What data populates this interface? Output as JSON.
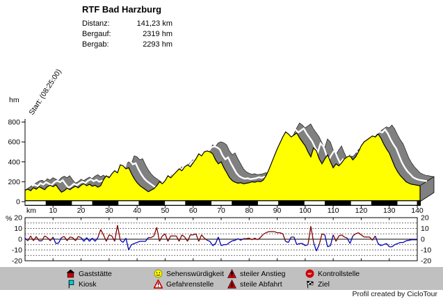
{
  "header": {
    "title": "RTF Bad Harzburg",
    "stats": [
      {
        "label": "Distanz:",
        "value": "141,23 km"
      },
      {
        "label": "Bergauf:",
        "value": "2319 hm"
      },
      {
        "label": "Bergab:",
        "value": "2293 hm"
      }
    ]
  },
  "colors": {
    "profile_fill": "#ffff00",
    "extrusion": "#808080",
    "stripe": "#ffffff",
    "climb": "#800000",
    "descent": "#0000bb",
    "legend_bg": "#c0c0c0",
    "axis": "#000000"
  },
  "chart_data": [
    {
      "type": "area",
      "title": "RTF Bad Harzburg elevation profile",
      "xlabel": "km",
      "ylabel": "hm",
      "start_annotation": "Start: (08:25:00)",
      "xlim": [
        0,
        140
      ],
      "ylim": [
        0,
        800
      ],
      "x_ticks": [
        10,
        20,
        30,
        40,
        50,
        60,
        70,
        80,
        90,
        100,
        110,
        120,
        130,
        140
      ],
      "y_ticks": [
        0,
        200,
        400,
        600,
        800
      ],
      "x_step_km": 1,
      "elevation_hm": [
        115,
        125,
        110,
        140,
        125,
        150,
        135,
        120,
        150,
        165,
        150,
        170,
        130,
        95,
        110,
        135,
        120,
        140,
        155,
        140,
        165,
        180,
        160,
        175,
        155,
        165,
        145,
        160,
        220,
        260,
        240,
        280,
        310,
        290,
        370,
        360,
        330,
        340,
        280,
        230,
        190,
        160,
        140,
        120,
        100,
        115,
        130,
        160,
        200,
        180,
        210,
        260,
        240,
        270,
        300,
        330,
        310,
        350,
        370,
        350,
        390,
        430,
        480,
        460,
        500,
        510,
        500,
        480,
        420,
        380,
        400,
        340,
        290,
        240,
        210,
        195,
        185,
        190,
        180,
        185,
        190,
        200,
        195,
        205,
        200,
        215,
        260,
        320,
        390,
        460,
        530,
        590,
        650,
        700,
        680,
        650,
        670,
        690,
        640,
        600,
        560,
        500,
        450,
        540,
        510,
        430,
        380,
        430,
        470,
        400,
        340,
        380,
        360,
        390,
        430,
        450,
        460,
        420,
        450,
        500,
        560,
        600,
        620,
        640,
        660,
        650,
        680,
        640,
        580,
        530,
        490,
        420,
        350,
        300,
        260,
        230,
        200,
        185,
        175,
        170,
        165,
        160
      ]
    },
    {
      "type": "line",
      "title": "gradient",
      "ylabel_left": "%",
      "ylim": [
        -20,
        20
      ],
      "y_ticks": [
        20,
        10,
        0,
        -10,
        -20
      ],
      "gridlines_pct": [
        15,
        10,
        5,
        -5,
        -10,
        -15
      ],
      "x_step_km": 1,
      "gradient_pct": [
        1,
        -1.5,
        3,
        -1.5,
        2.5,
        -1.5,
        -1.5,
        3,
        1.5,
        -1.5,
        2,
        -4,
        -3.5,
        1.5,
        2.5,
        -1.5,
        2,
        1.5,
        -1.5,
        2.5,
        1.5,
        -2,
        1.5,
        -2,
        1,
        -2,
        1.5,
        9,
        4,
        -2,
        4,
        3,
        -2,
        13,
        -1,
        -3,
        1,
        -10,
        -5,
        -4,
        -3,
        -2,
        -2,
        -2,
        1.5,
        1.5,
        3,
        11,
        -2,
        3,
        5,
        -2,
        3,
        3,
        3,
        -2,
        4,
        2,
        -2,
        4,
        4,
        5,
        -2,
        4,
        1,
        -1,
        -2,
        -6,
        -4,
        2,
        -6,
        -5,
        -5,
        -3,
        -1.5,
        -1,
        0.5,
        -1,
        0.5,
        0.5,
        1,
        -0.5,
        1,
        -0.5,
        1.5,
        4.5,
        6,
        7,
        7,
        7,
        6,
        6,
        5,
        -2,
        -3,
        2,
        2,
        -5,
        -4,
        -4,
        -6,
        -5,
        12,
        -3,
        -11,
        -5,
        5,
        4,
        -7,
        -6,
        4,
        -2,
        3,
        4,
        2,
        1,
        -4,
        3,
        5,
        6,
        4,
        2,
        2,
        2,
        -1,
        3,
        -4,
        -6,
        -5,
        -4,
        -7,
        -7,
        -5,
        -4,
        -3,
        -3,
        -1.5,
        -1,
        -0.5,
        -0.5,
        -0.5
      ]
    }
  ],
  "legend": {
    "items": [
      {
        "icon": "house-icon",
        "label": "Gaststätte"
      },
      {
        "icon": "smiley-icon",
        "label": "Sehenswürdigkeit"
      },
      {
        "icon": "steep-climb-icon",
        "label": "steiler Anstieg"
      },
      {
        "icon": "control-point-icon",
        "label": "Kontrollstelle"
      },
      {
        "icon": "kiosk-icon",
        "label": "Kiosk"
      },
      {
        "icon": "danger-icon",
        "label": "Gefahrenstelle"
      },
      {
        "icon": "steep-descent-icon",
        "label": "steile Abfahrt"
      },
      {
        "icon": "finish-flag-icon",
        "label": "Ziel"
      }
    ]
  },
  "footer": {
    "credit": "Profil created by CicloTour"
  }
}
